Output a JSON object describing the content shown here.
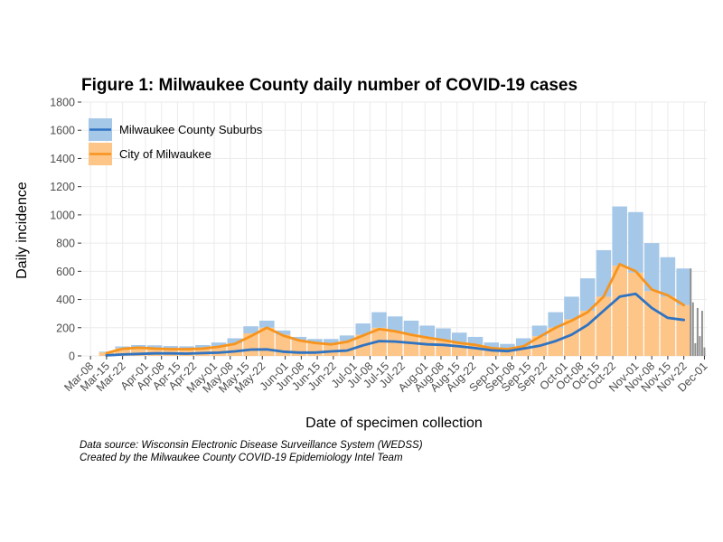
{
  "title": "Figure 1: Milwaukee County daily number of COVID-19 cases",
  "caption": {
    "source": "Data source: Wisconsin Electronic Disease Surveillance System (WEDSS)",
    "credit": "Created by the Milwaukee County COVID-19 Epidemiology Intel Team"
  },
  "colors": {
    "suburbs_bar": "#a5c7e8",
    "city_bar": "#fdc587",
    "suburbs_line": "#2f73c2",
    "city_line": "#f7941d",
    "incomplete_bar": "#8f8f8f",
    "grid": "#ebebeb",
    "axis": "#333333"
  },
  "chart_data": {
    "type": "bar",
    "title": "Figure 1: Milwaukee County daily number of COVID-19 cases",
    "xlabel": "Date of specimen collection",
    "ylabel": "Daily incidence",
    "ylim": [
      0,
      1800
    ],
    "yticks": [
      0,
      200,
      400,
      600,
      800,
      1000,
      1200,
      1400,
      1600,
      1800
    ],
    "xlim": [
      "2020-03-04",
      "2020-12-02"
    ],
    "x_ticks": [
      "2020-03-08",
      "2020-03-15",
      "2020-03-22",
      "2020-04-01",
      "2020-04-08",
      "2020-04-15",
      "2020-04-22",
      "2020-05-01",
      "2020-05-08",
      "2020-05-15",
      "2020-05-22",
      "2020-06-01",
      "2020-06-08",
      "2020-06-15",
      "2020-06-22",
      "2020-07-01",
      "2020-07-08",
      "2020-07-15",
      "2020-07-22",
      "2020-08-01",
      "2020-08-08",
      "2020-08-15",
      "2020-08-22",
      "2020-09-01",
      "2020-09-08",
      "2020-09-15",
      "2020-09-22",
      "2020-10-01",
      "2020-10-08",
      "2020-10-15",
      "2020-10-22",
      "2020-11-01",
      "2020-11-08",
      "2020-11-15",
      "2020-11-22",
      "2020-12-01"
    ],
    "x_tick_labels": [
      "Mar-08",
      "Mar-15",
      "Mar-22",
      "Apr-01",
      "Apr-08",
      "Apr-15",
      "Apr-22",
      "May-01",
      "May-08",
      "May-15",
      "May-22",
      "Jun-01",
      "Jun-08",
      "Jun-15",
      "Jun-22",
      "Jul-01",
      "Jul-08",
      "Jul-15",
      "Jul-22",
      "Aug-01",
      "Aug-08",
      "Aug-15",
      "Aug-22",
      "Sep-01",
      "Sep-08",
      "Sep-15",
      "Sep-22",
      "Oct-01",
      "Oct-08",
      "Oct-15",
      "Oct-22",
      "Nov-01",
      "Nov-08",
      "Nov-15",
      "Nov-22",
      "Dec-01"
    ],
    "stacking": "stacked",
    "legend_position": "top-left",
    "grid": true,
    "x": [
      "2020-03-15",
      "2020-03-22",
      "2020-03-29",
      "2020-04-05",
      "2020-04-12",
      "2020-04-19",
      "2020-04-26",
      "2020-05-03",
      "2020-05-10",
      "2020-05-17",
      "2020-05-24",
      "2020-05-31",
      "2020-06-07",
      "2020-06-14",
      "2020-06-21",
      "2020-06-28",
      "2020-07-05",
      "2020-07-12",
      "2020-07-19",
      "2020-07-26",
      "2020-08-02",
      "2020-08-09",
      "2020-08-16",
      "2020-08-23",
      "2020-08-30",
      "2020-09-06",
      "2020-09-13",
      "2020-09-20",
      "2020-09-27",
      "2020-10-04",
      "2020-10-11",
      "2020-10-18",
      "2020-10-25",
      "2020-11-01",
      "2020-11-08",
      "2020-11-15",
      "2020-11-22"
    ],
    "series": [
      {
        "name": "City of Milwaukee",
        "values": [
          25,
          55,
          62,
          55,
          50,
          50,
          55,
          70,
          90,
          160,
          200,
          150,
          110,
          95,
          85,
          105,
          150,
          200,
          175,
          155,
          130,
          115,
          95,
          80,
          55,
          50,
          70,
          140,
          200,
          260,
          320,
          420,
          640,
          590,
          460,
          420,
          360
        ]
      },
      {
        "name": "Milwaukee County Suburbs",
        "values": [
          5,
          12,
          15,
          20,
          20,
          18,
          22,
          25,
          35,
          50,
          50,
          30,
          25,
          25,
          35,
          40,
          80,
          110,
          105,
          95,
          85,
          80,
          70,
          55,
          40,
          35,
          55,
          75,
          110,
          160,
          230,
          330,
          420,
          430,
          340,
          280,
          260
        ]
      }
    ],
    "trend_lines": [
      {
        "name": "City of Milwaukee",
        "values": [
          20,
          50,
          58,
          52,
          48,
          48,
          52,
          65,
          85,
          140,
          200,
          145,
          110,
          92,
          82,
          100,
          145,
          190,
          175,
          150,
          130,
          112,
          92,
          78,
          55,
          48,
          68,
          135,
          200,
          250,
          310,
          420,
          650,
          600,
          470,
          430,
          360
        ]
      },
      {
        "name": "Milwaukee County Suburbs",
        "values": [
          4,
          10,
          14,
          18,
          18,
          16,
          20,
          23,
          32,
          45,
          46,
          30,
          24,
          24,
          32,
          38,
          75,
          105,
          102,
          92,
          82,
          78,
          68,
          55,
          40,
          34,
          52,
          72,
          105,
          150,
          220,
          320,
          420,
          440,
          340,
          270,
          255
        ]
      }
    ],
    "incomplete_recent": {
      "x": [
        "2020-11-25",
        "2020-11-26",
        "2020-11-27",
        "2020-11-28",
        "2020-11-29",
        "2020-11-30",
        "2020-12-01"
      ],
      "values": [
        620,
        380,
        90,
        340,
        140,
        320,
        60
      ]
    }
  }
}
